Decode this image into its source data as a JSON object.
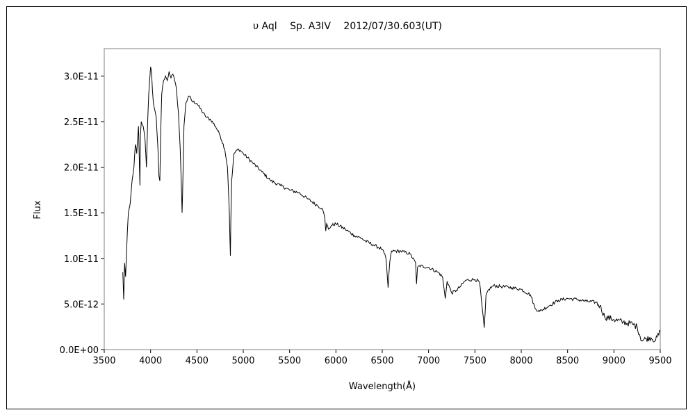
{
  "chart_data": {
    "type": "line",
    "title": "υ Aql　 Sp. A3IV　 2012/07/30.603(UT)",
    "xlabel": "Wavelength(Å)",
    "ylabel": "Flux",
    "xlim": [
      3500,
      9500
    ],
    "ylim": [
      0,
      3.3e-11
    ],
    "x_ticks": [
      3500,
      4000,
      4500,
      5000,
      5500,
      6000,
      6500,
      7000,
      7500,
      8000,
      8500,
      9000,
      9500
    ],
    "x_tick_labels": [
      "3500",
      "4000",
      "4500",
      "5000",
      "5500",
      "6000",
      "6500",
      "7000",
      "7500",
      "8000",
      "8500",
      "9000",
      "9500"
    ],
    "y_ticks": [
      0,
      5e-12,
      1e-11,
      1.5e-11,
      2e-11,
      2.5e-11,
      3e-11
    ],
    "y_tick_labels": [
      "0.0E+00",
      "5.0E-12",
      "1.0E-11",
      "1.5E-11",
      "2.0E-11",
      "2.5E-11",
      "3.0E-11"
    ],
    "grid": false,
    "legend": "none",
    "line_color": "#000000",
    "series": [
      {
        "x": [
          3700,
          3710,
          3720,
          3730,
          3740,
          3750,
          3760,
          3770,
          3780,
          3800,
          3820,
          3835,
          3850,
          3870,
          3885,
          3890,
          3900,
          3920,
          3940,
          3955,
          3970,
          3980,
          3990,
          4000,
          4010,
          4020,
          4030,
          4040,
          4060,
          4080,
          4090,
          4100,
          4110,
          4120,
          4140,
          4160,
          4180,
          4200,
          4220,
          4240,
          4260,
          4280,
          4300,
          4320,
          4335,
          4340,
          4345,
          4360,
          4380,
          4400,
          4420,
          4450,
          4500,
          4550,
          4600,
          4650,
          4700,
          4750,
          4800,
          4830,
          4850,
          4855,
          4861,
          4866,
          4875,
          4900,
          4950,
          5000,
          5100,
          5200,
          5300,
          5400,
          5500,
          5600,
          5700,
          5800,
          5850,
          5880,
          5890,
          5900,
          5920,
          5950,
          6000,
          6100,
          6200,
          6280,
          6300,
          6400,
          6500,
          6540,
          6563,
          6580,
          6600,
          6700,
          6800,
          6860,
          6870,
          6880,
          6900,
          7000,
          7100,
          7150,
          7180,
          7200,
          7250,
          7300,
          7350,
          7400,
          7500,
          7550,
          7600,
          7610,
          7620,
          7650,
          7700,
          7800,
          7900,
          8000,
          8100,
          8150,
          8200,
          8300,
          8400,
          8500,
          8600,
          8700,
          8800,
          8850,
          8900,
          9000,
          9100,
          9200,
          9250,
          9300,
          9350,
          9400,
          9450,
          9500
        ],
        "y": [
          8.5e-12,
          5.5e-12,
          9.5e-12,
          8e-12,
          1.05e-11,
          1.3e-11,
          1.5e-11,
          1.55e-11,
          1.6e-11,
          1.85e-11,
          2e-11,
          2.25e-11,
          2.15e-11,
          2.45e-11,
          1.8e-11,
          2.35e-11,
          2.5e-11,
          2.45e-11,
          2.3e-11,
          2e-11,
          2.55e-11,
          2.8e-11,
          2.95e-11,
          3.1e-11,
          3.05e-11,
          2.85e-11,
          2.7e-11,
          2.65e-11,
          2.55e-11,
          2.2e-11,
          1.9e-11,
          1.85e-11,
          2.4e-11,
          2.8e-11,
          2.95e-11,
          3e-11,
          2.95e-11,
          3.05e-11,
          2.98e-11,
          3.02e-11,
          2.95e-11,
          2.85e-11,
          2.6e-11,
          2.2e-11,
          1.7e-11,
          1.5e-11,
          1.7e-11,
          2.45e-11,
          2.7e-11,
          2.75e-11,
          2.78e-11,
          2.72e-11,
          2.7e-11,
          2.62e-11,
          2.55e-11,
          2.52e-11,
          2.45e-11,
          2.35e-11,
          2.2e-11,
          2e-11,
          1.5e-11,
          1.25e-11,
          1.03e-11,
          1.4e-11,
          1.85e-11,
          2.15e-11,
          2.2e-11,
          2.15e-11,
          2.05e-11,
          1.95e-11,
          1.85e-11,
          1.8e-11,
          1.75e-11,
          1.72e-11,
          1.65e-11,
          1.58e-11,
          1.55e-11,
          1.45e-11,
          1.3e-11,
          1.38e-11,
          1.32e-11,
          1.36e-11,
          1.38e-11,
          1.32e-11,
          1.25e-11,
          1.22e-11,
          1.2e-11,
          1.15e-11,
          1.1e-11,
          1e-11,
          6.8e-12,
          9.5e-12,
          1.08e-11,
          1.08e-11,
          1.05e-11,
          9.5e-12,
          7.2e-12,
          9e-12,
          9.2e-12,
          9e-12,
          8.5e-12,
          8e-12,
          5.6e-12,
          7.5e-12,
          6.2e-12,
          6.5e-12,
          7e-12,
          7.6e-12,
          7.7e-12,
          7.4e-12,
          2.4e-12,
          4e-12,
          6e-12,
          6.6e-12,
          7e-12,
          6.9e-12,
          6.8e-12,
          6.6e-12,
          6e-12,
          4.5e-12,
          4.2e-12,
          4.8e-12,
          5.4e-12,
          5.6e-12,
          5.5e-12,
          5.3e-12,
          5.2e-12,
          4.8e-12,
          3.6e-12,
          3.3e-12,
          3e-12,
          2.8e-12,
          2.5e-12,
          1e-12,
          1.2e-12,
          1.3e-12,
          1e-12,
          2e-12
        ]
      }
    ]
  }
}
